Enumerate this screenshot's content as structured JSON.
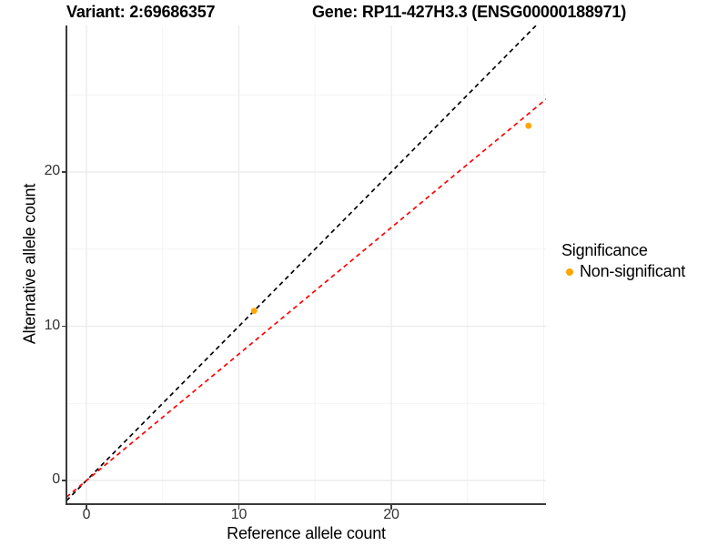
{
  "titles": {
    "variant": "Variant: 2:69686357",
    "gene": "Gene: RP11-427H3.3 (ENSG00000188971)"
  },
  "axes": {
    "x_label": "Reference allele count",
    "y_label": "Alternative allele count"
  },
  "legend": {
    "title": "Significance",
    "items": [
      {
        "label": "Non-significant",
        "color": "#FFA500"
      }
    ]
  },
  "colors": {
    "background": "#FFFFFF",
    "grid_major": "#EBEBEB",
    "grid_minor": "#F4F4F4",
    "axis_line": "#3A3A3A",
    "tick_label": "#333333",
    "identity_line": "#000000",
    "fit_line": "#FF0000",
    "point": "#FFA500"
  },
  "chart_data": {
    "type": "scatter",
    "title": "Variant: 2:69686357 — Gene: RP11-427H3.3 (ENSG00000188971)",
    "xlabel": "Reference allele count",
    "ylabel": "Alternative allele count",
    "xlim": [
      -1.31,
      30.15
    ],
    "ylim": [
      -1.47,
      29.5
    ],
    "x_breaks": [
      0,
      10,
      20
    ],
    "y_breaks": [
      0,
      10,
      20
    ],
    "x_minor": [
      5,
      15,
      25,
      30
    ],
    "y_minor": [
      5,
      15,
      25
    ],
    "grid": true,
    "legend_position": "right",
    "series": [
      {
        "name": "Non-significant",
        "color": "#FFA500",
        "points": [
          {
            "x": 11,
            "y": 11
          },
          {
            "x": 29,
            "y": 23
          }
        ]
      }
    ],
    "lines": [
      {
        "name": "identity",
        "slope": 1.0,
        "intercept": 0,
        "color": "#000000",
        "style": "dashed"
      },
      {
        "name": "fitted-allelic-ratio",
        "slope": 0.82,
        "intercept": 0,
        "color": "#FF0000",
        "style": "dashed"
      }
    ]
  }
}
